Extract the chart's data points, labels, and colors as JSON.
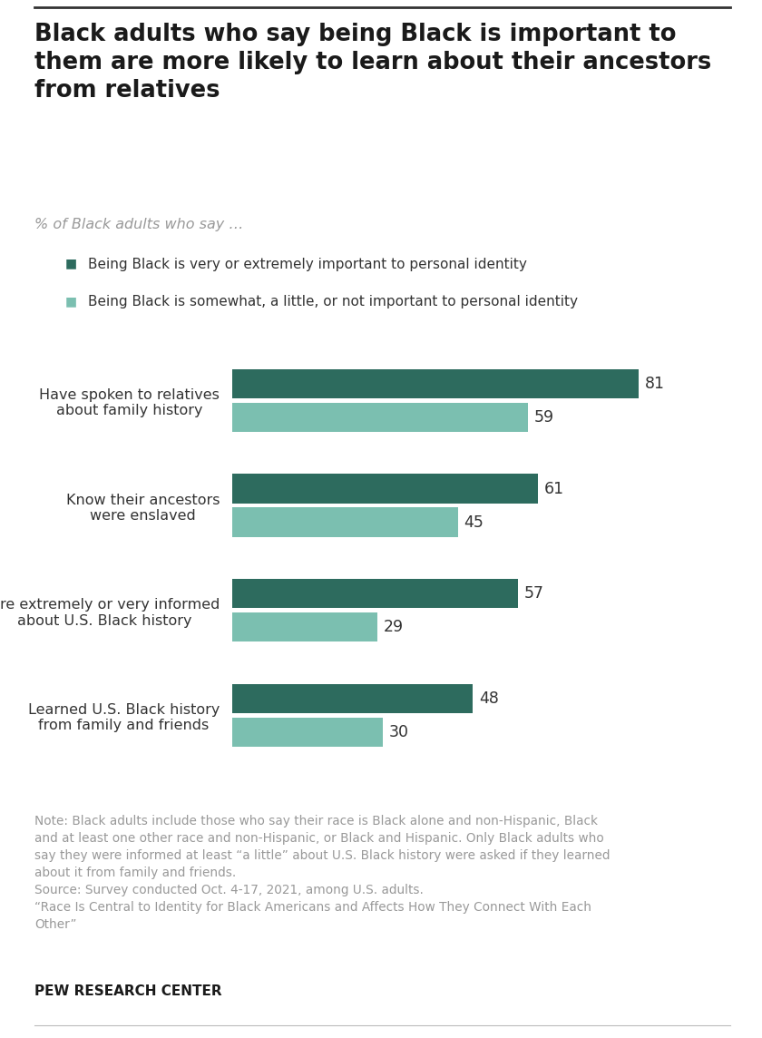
{
  "title": "Black adults who say being Black is important to\nthem are more likely to learn about their ancestors\nfrom relatives",
  "subtitle": "% of Black adults who say …",
  "legend_labels": [
    "Being Black is very or extremely important to personal identity",
    "Being Black is somewhat, a little, or not important to personal identity"
  ],
  "legend_colors": [
    "#2d6b5e",
    "#7bbfb0"
  ],
  "categories": [
    "Have spoken to relatives\nabout family history",
    "Know their ancestors\nwere enslaved",
    "Are extremely or very informed\nabout U.S. Black history",
    "Learned U.S. Black history\nfrom family and friends"
  ],
  "values_dark": [
    81,
    61,
    57,
    48
  ],
  "values_light": [
    59,
    45,
    29,
    30
  ],
  "dark_color": "#2d6b5e",
  "light_color": "#7bbfb0",
  "xlim": [
    0,
    95
  ],
  "note_line1": "Note: Black adults include those who say their race is Black alone and non-Hispanic, Black",
  "note_line2": "and at least one other race and non-Hispanic, or Black and Hispanic. Only Black adults who",
  "note_line3": "say they were informed at least “a little” about U.S. Black history were asked if they learned",
  "note_line4": "about it from family and friends.",
  "note_line5": "Source: Survey conducted Oct. 4-17, 2021, among U.S. adults.",
  "note_line6": "“Race Is Central to Identity for Black Americans and Affects How They Connect With Each",
  "note_line7": "Other”",
  "source_label": "PEW RESEARCH CENTER",
  "background_color": "#ffffff"
}
